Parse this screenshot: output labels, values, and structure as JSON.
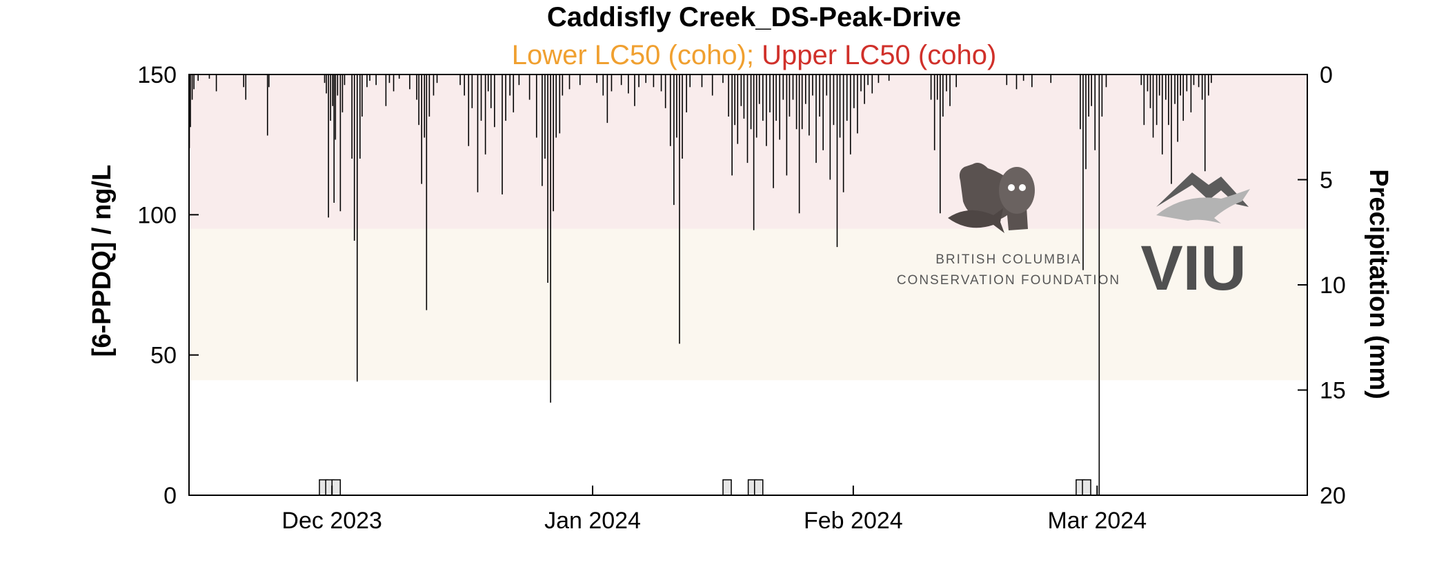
{
  "colors": {
    "lower_band": "#fbf7ef",
    "upper_band": "#f9ecec",
    "lower_label": "#f0a030",
    "upper_label": "#d0302a",
    "precip_line": "#000000",
    "conc_bar_fill": "#e6e6e6",
    "logo": "#5a5250"
  },
  "logos": {
    "bccf_line1": "BRITISH COLUMBIA",
    "bccf_line2": "CONSERVATION FOUNDATION",
    "viu": "VIU"
  },
  "chart_data": {
    "type": "bar",
    "title": "Caddisfly Creek_DS-Peak-Drive",
    "subtitle_parts": [
      {
        "text": "Lower LC50 (coho); ",
        "color": "#f0a030"
      },
      {
        "text": "Upper LC50 (coho)",
        "color": "#d0302a"
      }
    ],
    "ylabel": "[6-PPDQ] / ng/L",
    "y2label": "Precipitation (mm)",
    "ylim": [
      0,
      150
    ],
    "y2lim": [
      0,
      20
    ],
    "y2_reversed": true,
    "yticks": [
      0,
      50,
      100,
      150
    ],
    "y2ticks": [
      0,
      5,
      10,
      15,
      20
    ],
    "xlim": [
      "2023-11-14",
      "2024-03-26"
    ],
    "xticks": [
      {
        "date": "2023-12-01",
        "label": "Dec 2023"
      },
      {
        "date": "2024-01-01",
        "label": "Jan 2024"
      },
      {
        "date": "2024-02-01",
        "label": "Feb 2024"
      },
      {
        "date": "2024-03-01",
        "label": "Mar 2024"
      }
    ],
    "lc50_bands": [
      {
        "name": "Lower LC50 (coho)",
        "from": 41,
        "to": 95
      },
      {
        "name": "Upper LC50 (coho)",
        "from": 95,
        "to": 150
      }
    ],
    "concentration_samples": [
      {
        "date": "2023-11-30",
        "value": 5.5
      },
      {
        "date": "2023-11-30T18:00",
        "value": 5.5
      },
      {
        "date": "2023-12-01T12:00",
        "value": 5.5
      },
      {
        "date": "2024-01-17",
        "value": 5.5
      },
      {
        "date": "2024-01-20",
        "value": 5.5
      },
      {
        "date": "2024-01-20T18:00",
        "value": 5.5
      },
      {
        "date": "2024-02-28",
        "value": 5.5
      },
      {
        "date": "2024-02-28T18:00",
        "value": 5.5
      }
    ],
    "precipitation_hourly_mm": [
      [
        "2023-11-14T01:00",
        3.5
      ],
      [
        "2023-11-14T04:00",
        2.5
      ],
      [
        "2023-11-14T09:00",
        1.2
      ],
      [
        "2023-11-14T14:00",
        0.7
      ],
      [
        "2023-11-15T02:00",
        0.3
      ],
      [
        "2023-11-16T10:00",
        0.2
      ],
      [
        "2023-11-17T06:00",
        0.8
      ],
      [
        "2023-11-20T12:00",
        0.6
      ],
      [
        "2023-11-20T18:00",
        1.2
      ],
      [
        "2023-11-23T08:00",
        2.9
      ],
      [
        "2023-11-23T12:00",
        0.6
      ],
      [
        "2023-11-30T03:00",
        0.4
      ],
      [
        "2023-11-30T08:00",
        0.9
      ],
      [
        "2023-11-30T14:00",
        6.8
      ],
      [
        "2023-11-30T20:00",
        2.2
      ],
      [
        "2023-12-01T02:00",
        1.5
      ],
      [
        "2023-12-01T06:00",
        6.1
      ],
      [
        "2023-12-01T10:00",
        3.1
      ],
      [
        "2023-12-01T16:00",
        1.0
      ],
      [
        "2023-12-02T00:00",
        6.5
      ],
      [
        "2023-12-02T06:00",
        1.8
      ],
      [
        "2023-12-02T12:00",
        0.5
      ],
      [
        "2023-12-03T09:00",
        4.0
      ],
      [
        "2023-12-03T16:00",
        7.9
      ],
      [
        "2023-12-04T00:00",
        14.6
      ],
      [
        "2023-12-04T08:00",
        4.0
      ],
      [
        "2023-12-04T14:00",
        2.0
      ],
      [
        "2023-12-05T04:00",
        0.6
      ],
      [
        "2023-12-05T12:00",
        0.3
      ],
      [
        "2023-12-06T06:00",
        0.5
      ],
      [
        "2023-12-07T10:00",
        1.5
      ],
      [
        "2023-12-07T20:00",
        0.4
      ],
      [
        "2023-12-08T08:00",
        0.8
      ],
      [
        "2023-12-09T00:00",
        0.2
      ],
      [
        "2023-12-10T06:00",
        0.7
      ],
      [
        "2023-12-11T02:00",
        1.2
      ],
      [
        "2023-12-11T08:00",
        2.4
      ],
      [
        "2023-12-11T16:00",
        5.2
      ],
      [
        "2023-12-12T00:00",
        3.0
      ],
      [
        "2023-12-12T06:00",
        11.2
      ],
      [
        "2023-12-12T14:00",
        2.0
      ],
      [
        "2023-12-13T02:00",
        1.0
      ],
      [
        "2023-12-13T12:00",
        0.4
      ],
      [
        "2023-12-16T06:00",
        0.5
      ],
      [
        "2023-12-16T18:00",
        1.0
      ],
      [
        "2023-12-17T06:00",
        3.4
      ],
      [
        "2023-12-17T16:00",
        1.6
      ],
      [
        "2023-12-18T08:00",
        5.6
      ],
      [
        "2023-12-18T18:00",
        2.2
      ],
      [
        "2023-12-19T06:00",
        3.8
      ],
      [
        "2023-12-19T14:00",
        0.8
      ],
      [
        "2023-12-19T22:00",
        1.6
      ],
      [
        "2023-12-20T08:00",
        2.5
      ],
      [
        "2023-12-21T06:00",
        5.7
      ],
      [
        "2023-12-21T16:00",
        2.2
      ],
      [
        "2023-12-22T04:00",
        1.0
      ],
      [
        "2023-12-22T14:00",
        1.8
      ],
      [
        "2023-12-23T06:00",
        0.5
      ],
      [
        "2023-12-24T12:00",
        1.2
      ],
      [
        "2023-12-25T08:00",
        3.0
      ],
      [
        "2023-12-26T00:00",
        5.3
      ],
      [
        "2023-12-26T08:00",
        4.0
      ],
      [
        "2023-12-26T16:00",
        9.9
      ],
      [
        "2023-12-27T00:00",
        15.6
      ],
      [
        "2023-12-27T08:00",
        6.5
      ],
      [
        "2023-12-27T16:00",
        3.0
      ],
      [
        "2023-12-28T02:00",
        2.8
      ],
      [
        "2023-12-28T10:00",
        1.0
      ],
      [
        "2023-12-29T06:00",
        0.7
      ],
      [
        "2023-12-30T12:00",
        0.5
      ],
      [
        "2024-01-01T12:00",
        0.4
      ],
      [
        "2024-01-02T06:00",
        1.0
      ],
      [
        "2024-01-02T18:00",
        2.3
      ],
      [
        "2024-01-03T06:00",
        0.8
      ],
      [
        "2024-01-04T10:00",
        0.5
      ],
      [
        "2024-01-05T06:00",
        0.9
      ],
      [
        "2024-01-06T00:00",
        1.5
      ],
      [
        "2024-01-06T12:00",
        0.6
      ],
      [
        "2024-01-07T08:00",
        0.4
      ],
      [
        "2024-01-08T06:00",
        0.6
      ],
      [
        "2024-01-09T04:00",
        0.8
      ],
      [
        "2024-01-09T16:00",
        1.6
      ],
      [
        "2024-01-10T06:00",
        3.4
      ],
      [
        "2024-01-10T16:00",
        6.2
      ],
      [
        "2024-01-11T00:00",
        3.0
      ],
      [
        "2024-01-11T08:00",
        12.8
      ],
      [
        "2024-01-11T16:00",
        4.0
      ],
      [
        "2024-01-12T04:00",
        1.8
      ],
      [
        "2024-01-12T14:00",
        0.6
      ],
      [
        "2024-01-14T00:00",
        0.6
      ],
      [
        "2024-01-15T06:00",
        1.0
      ],
      [
        "2024-01-16T12:00",
        0.4
      ],
      [
        "2024-01-17T04:00",
        2.0
      ],
      [
        "2024-01-17T14:00",
        4.8
      ],
      [
        "2024-01-17T22:00",
        2.4
      ],
      [
        "2024-01-18T06:00",
        3.3
      ],
      [
        "2024-01-18T16:00",
        1.5
      ],
      [
        "2024-01-19T00:00",
        2.1
      ],
      [
        "2024-01-19T10:00",
        4.2
      ],
      [
        "2024-01-19T20:00",
        2.6
      ],
      [
        "2024-01-20T04:00",
        7.4
      ],
      [
        "2024-01-20T12:00",
        3.0
      ],
      [
        "2024-01-20T20:00",
        1.4
      ],
      [
        "2024-01-21T06:00",
        2.2
      ],
      [
        "2024-01-21T16:00",
        3.4
      ],
      [
        "2024-01-22T02:00",
        1.8
      ],
      [
        "2024-01-22T12:00",
        5.4
      ],
      [
        "2024-01-22T20:00",
        2.2
      ],
      [
        "2024-01-23T06:00",
        3.1
      ],
      [
        "2024-01-23T16:00",
        1.2
      ],
      [
        "2024-01-24T02:00",
        4.8
      ],
      [
        "2024-01-24T10:00",
        2.0
      ],
      [
        "2024-01-24T20:00",
        1.2
      ],
      [
        "2024-01-25T06:00",
        2.6
      ],
      [
        "2024-01-25T14:00",
        6.6
      ],
      [
        "2024-01-25T22:00",
        2.6
      ],
      [
        "2024-01-26T08:00",
        1.4
      ],
      [
        "2024-01-26T18:00",
        2.9
      ],
      [
        "2024-01-27T04:00",
        1.0
      ],
      [
        "2024-01-27T14:00",
        4.2
      ],
      [
        "2024-01-28T00:00",
        2.0
      ],
      [
        "2024-01-28T10:00",
        3.6
      ],
      [
        "2024-01-28T20:00",
        1.0
      ],
      [
        "2024-01-29T06:00",
        5.0
      ],
      [
        "2024-01-29T16:00",
        2.4
      ],
      [
        "2024-01-30T02:00",
        8.2
      ],
      [
        "2024-01-30T10:00",
        3.0
      ],
      [
        "2024-01-30T20:00",
        5.6
      ],
      [
        "2024-01-31T06:00",
        2.2
      ],
      [
        "2024-01-31T16:00",
        3.8
      ],
      [
        "2024-02-01T02:00",
        1.6
      ],
      [
        "2024-02-01T12:00",
        2.8
      ],
      [
        "2024-02-01T22:00",
        0.8
      ],
      [
        "2024-02-02T08:00",
        1.4
      ],
      [
        "2024-02-02T18:00",
        0.5
      ],
      [
        "2024-02-03T06:00",
        0.9
      ],
      [
        "2024-02-04T00:00",
        0.4
      ],
      [
        "2024-02-05T06:00",
        0.3
      ],
      [
        "2024-02-10T06:00",
        1.2
      ],
      [
        "2024-02-10T16:00",
        3.6
      ],
      [
        "2024-02-11T00:00",
        1.2
      ],
      [
        "2024-02-11T08:00",
        6.6
      ],
      [
        "2024-02-11T16:00",
        2.0
      ],
      [
        "2024-02-12T02:00",
        0.8
      ],
      [
        "2024-02-12T12:00",
        1.5
      ],
      [
        "2024-02-13T06:00",
        0.6
      ],
      [
        "2024-02-19T06:00",
        0.5
      ],
      [
        "2024-02-20T10:00",
        0.7
      ],
      [
        "2024-02-21T06:00",
        0.3
      ],
      [
        "2024-02-22T06:00",
        0.6
      ],
      [
        "2024-02-24T12:00",
        0.4
      ],
      [
        "2024-02-28T00:00",
        2.6
      ],
      [
        "2024-02-28T08:00",
        9.3
      ],
      [
        "2024-02-28T16:00",
        4.5
      ],
      [
        "2024-02-29T00:00",
        2.0
      ],
      [
        "2024-02-29T08:00",
        1.5
      ],
      [
        "2024-02-29T18:00",
        3.6
      ],
      [
        "2024-03-01T06:00",
        20.0
      ],
      [
        "2024-03-01T14:00",
        2.0
      ],
      [
        "2024-03-02T02:00",
        0.6
      ],
      [
        "2024-03-06T06:00",
        0.5
      ],
      [
        "2024-03-06T14:00",
        2.4
      ],
      [
        "2024-03-07T00:00",
        0.8
      ],
      [
        "2024-03-07T08:00",
        1.6
      ],
      [
        "2024-03-07T16:00",
        3.0
      ],
      [
        "2024-03-08T02:00",
        2.4
      ],
      [
        "2024-03-08T10:00",
        1.0
      ],
      [
        "2024-03-08T18:00",
        3.8
      ],
      [
        "2024-03-09T04:00",
        1.2
      ],
      [
        "2024-03-09T12:00",
        2.4
      ],
      [
        "2024-03-09T20:00",
        5.2
      ],
      [
        "2024-03-10T06:00",
        1.4
      ],
      [
        "2024-03-10T14:00",
        3.2
      ],
      [
        "2024-03-10T22:00",
        1.0
      ],
      [
        "2024-03-11T06:00",
        2.2
      ],
      [
        "2024-03-11T16:00",
        0.8
      ],
      [
        "2024-03-12T04:00",
        1.8
      ],
      [
        "2024-03-12T12:00",
        0.5
      ],
      [
        "2024-03-13T02:00",
        0.6
      ],
      [
        "2024-03-13T12:00",
        1.2
      ],
      [
        "2024-03-13T20:00",
        4.6
      ],
      [
        "2024-03-14T06:00",
        1.0
      ],
      [
        "2024-03-14T14:00",
        0.4
      ]
    ]
  }
}
